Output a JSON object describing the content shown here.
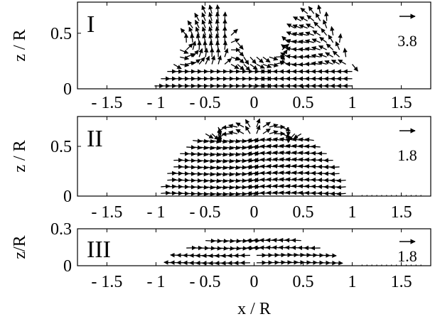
{
  "chart_data": [
    {
      "type": "quiver",
      "panel_label": "I",
      "ylabel": "z / R",
      "xlabel": "",
      "xlim": [
        -1.8,
        1.8
      ],
      "ylim": [
        0,
        0.78
      ],
      "xticks": [
        -1.5,
        -1,
        -0.5,
        0,
        0.5,
        1,
        1.5
      ],
      "xtick_labels": [
        "- 1.5",
        "- 1",
        "- 0.5",
        "0",
        "0.5",
        "1",
        "1.5"
      ],
      "yticks": [
        0,
        0.5
      ],
      "ytick_labels": [
        "0",
        "0.5"
      ],
      "scale_value": "3.8",
      "region": {
        "r": 1.0,
        "dome_height": 0.72,
        "twin_lobes": true
      },
      "grid": false
    },
    {
      "type": "quiver",
      "panel_label": "II",
      "ylabel": "z / R",
      "xlabel": "",
      "xlim": [
        -1.8,
        1.8
      ],
      "ylim": [
        0,
        0.8
      ],
      "xticks": [
        -1.5,
        -1,
        -0.5,
        0,
        0.5,
        1,
        1.5
      ],
      "xtick_labels": [
        "- 1.5",
        "- 1",
        "- 0.5",
        "0",
        "0.5",
        "1",
        "1.5"
      ],
      "yticks": [
        0,
        0.5
      ],
      "ytick_labels": [
        "0",
        "0.5"
      ],
      "scale_value": "1.8",
      "region": {
        "r": 0.96,
        "dome_height": 0.75,
        "twin_lobes": false
      },
      "grid": false
    },
    {
      "type": "quiver",
      "panel_label": "III",
      "ylabel": "z/R",
      "xlabel": "x / R",
      "xlim": [
        -1.8,
        1.8
      ],
      "ylim": [
        0,
        0.3
      ],
      "xticks": [
        -1.5,
        -1,
        -0.5,
        0,
        0.5,
        1,
        1.5
      ],
      "xtick_labels": [
        "- 1.5",
        "- 1",
        "- 0.5",
        "0",
        "0.5",
        "1",
        "1.5"
      ],
      "yticks": [
        0,
        0.3
      ],
      "ytick_labels": [
        "0",
        "0.3"
      ],
      "scale_value": "1.8",
      "region": {
        "r": 0.84,
        "dome_height": 0.26,
        "twin_lobes": false
      },
      "grid": false
    }
  ]
}
